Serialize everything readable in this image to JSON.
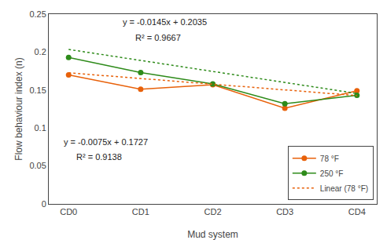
{
  "chart_data": {
    "type": "line",
    "x_label": "Mud system",
    "y_label": "Flow behaviour index (n)",
    "categories": [
      "CD0",
      "CD1",
      "CD2",
      "CD3",
      "CD4"
    ],
    "series": [
      {
        "name": "78 °F",
        "color": "#E8610A",
        "marker": "circle",
        "line_style": "solid",
        "values": [
          0.17,
          0.151,
          0.157,
          0.126,
          0.149
        ]
      },
      {
        "name": "250 °F",
        "color": "#2E8B1A",
        "marker": "circle",
        "line_style": "solid",
        "values": [
          0.193,
          0.173,
          0.158,
          0.132,
          0.143
        ]
      },
      {
        "name": "Linear (78 °F)",
        "color": "#E8610A",
        "line_style": "dotted",
        "values": [
          0.1727,
          null,
          null,
          null,
          0.1427
        ]
      },
      {
        "color": "#2E8B1A",
        "line_style": "dotted",
        "values": [
          0.2035,
          null,
          null,
          null,
          0.1455
        ]
      }
    ],
    "annotations": [
      "y = -0.0145x + 0.2035",
      "R² = 0.9667",
      "y = -0.0075x + 0.1727",
      "R² = 0.9138"
    ],
    "ylim": [
      0,
      0.25
    ],
    "yticks": [
      0,
      0.05,
      0.1,
      0.15,
      0.2,
      0.25
    ],
    "grid": false,
    "legend": "lower right"
  }
}
